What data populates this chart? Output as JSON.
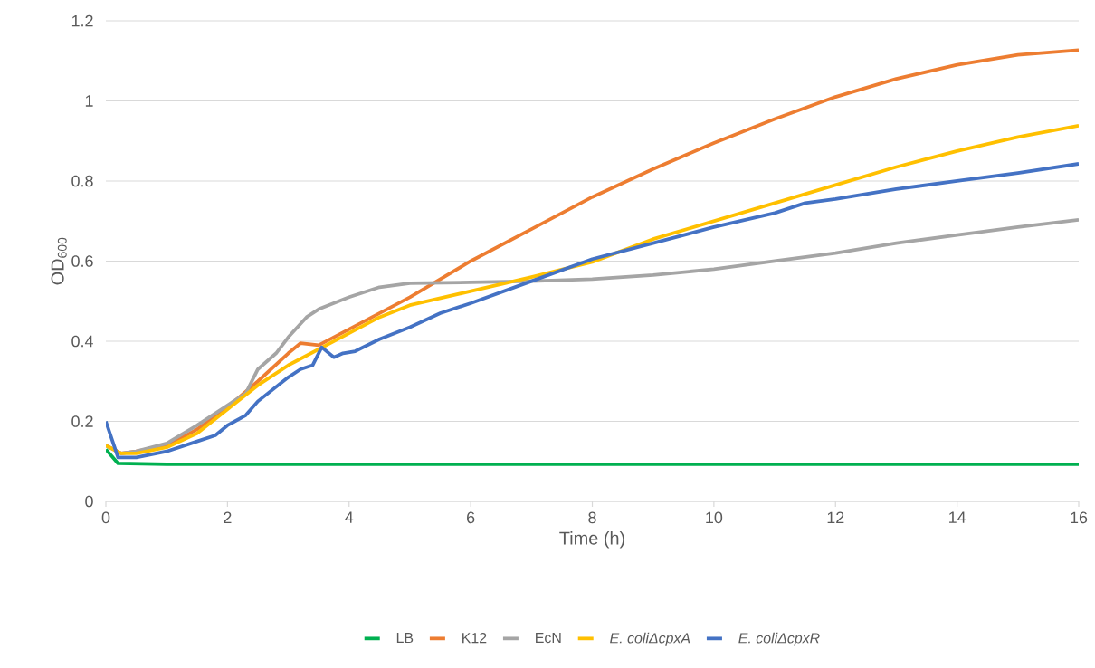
{
  "chart_data": {
    "type": "line",
    "xlabel": "Time (h)",
    "ylabel": "OD$_{600}$",
    "xlim": [
      0,
      16
    ],
    "xticks": [
      0,
      2,
      4,
      6,
      8,
      10,
      12,
      14,
      16
    ],
    "ylim": [
      0,
      1.2
    ],
    "yticks": [
      0,
      0.2,
      0.4,
      0.6,
      0.8,
      1,
      1.2
    ],
    "grid": "y",
    "legend": "bottom",
    "marker": "none",
    "line_style": "solid",
    "series": [
      {
        "name": "LB",
        "color": "#00b050",
        "x": [
          0,
          0.2,
          1,
          4,
          8,
          12,
          16
        ],
        "values": [
          0.13,
          0.095,
          0.093,
          0.093,
          0.093,
          0.093,
          0.093
        ]
      },
      {
        "name": "K12",
        "color": "#ed7d31",
        "x": [
          0,
          0.25,
          0.5,
          1,
          1.5,
          2,
          2.5,
          3,
          3.2,
          3.5,
          4,
          4.5,
          5,
          5.5,
          6,
          7,
          8,
          9,
          10,
          11,
          12,
          13,
          14,
          15,
          16
        ],
        "values": [
          0.14,
          0.12,
          0.125,
          0.14,
          0.18,
          0.235,
          0.3,
          0.37,
          0.395,
          0.39,
          0.43,
          0.47,
          0.51,
          0.555,
          0.6,
          0.68,
          0.76,
          0.83,
          0.895,
          0.955,
          1.01,
          1.055,
          1.09,
          1.115,
          1.127
        ]
      },
      {
        "name": "EcN",
        "color": "#a5a5a5",
        "x": [
          0,
          0.25,
          0.5,
          1,
          1.5,
          2,
          2.3,
          2.5,
          2.8,
          3,
          3.3,
          3.5,
          4,
          4.5,
          5,
          6,
          7,
          8,
          9,
          10,
          11,
          12,
          13,
          14,
          15,
          16
        ],
        "values": [
          0.14,
          0.12,
          0.125,
          0.145,
          0.19,
          0.24,
          0.27,
          0.33,
          0.37,
          0.41,
          0.46,
          0.48,
          0.51,
          0.535,
          0.545,
          0.547,
          0.55,
          0.555,
          0.565,
          0.58,
          0.6,
          0.62,
          0.645,
          0.665,
          0.685,
          0.703
        ]
      },
      {
        "name": "*E. coliΔcpxA*",
        "color": "#ffc000",
        "x": [
          0,
          0.25,
          0.5,
          1,
          1.5,
          2,
          2.5,
          3,
          3.5,
          4,
          4.5,
          5,
          6,
          7,
          8,
          9,
          10,
          11,
          12,
          13,
          14,
          15,
          16
        ],
        "values": [
          0.14,
          0.12,
          0.12,
          0.135,
          0.17,
          0.23,
          0.29,
          0.34,
          0.38,
          0.42,
          0.46,
          0.49,
          0.525,
          0.56,
          0.598,
          0.655,
          0.7,
          0.745,
          0.79,
          0.835,
          0.875,
          0.91,
          0.938
        ]
      },
      {
        "name": "*E. coliΔcpxR*",
        "color": "#4472c4",
        "x": [
          0,
          0.2,
          0.5,
          1,
          1.5,
          1.8,
          2,
          2.3,
          2.5,
          3,
          3.2,
          3.4,
          3.55,
          3.75,
          3.9,
          4.1,
          4.5,
          5,
          5.5,
          6,
          7,
          8,
          9,
          10,
          11,
          11.5,
          12,
          13,
          14,
          15,
          16
        ],
        "values": [
          0.2,
          0.11,
          0.11,
          0.125,
          0.15,
          0.165,
          0.19,
          0.215,
          0.25,
          0.31,
          0.33,
          0.34,
          0.385,
          0.36,
          0.37,
          0.375,
          0.405,
          0.435,
          0.47,
          0.495,
          0.55,
          0.605,
          0.645,
          0.685,
          0.72,
          0.745,
          0.755,
          0.78,
          0.8,
          0.82,
          0.843
        ]
      }
    ]
  }
}
